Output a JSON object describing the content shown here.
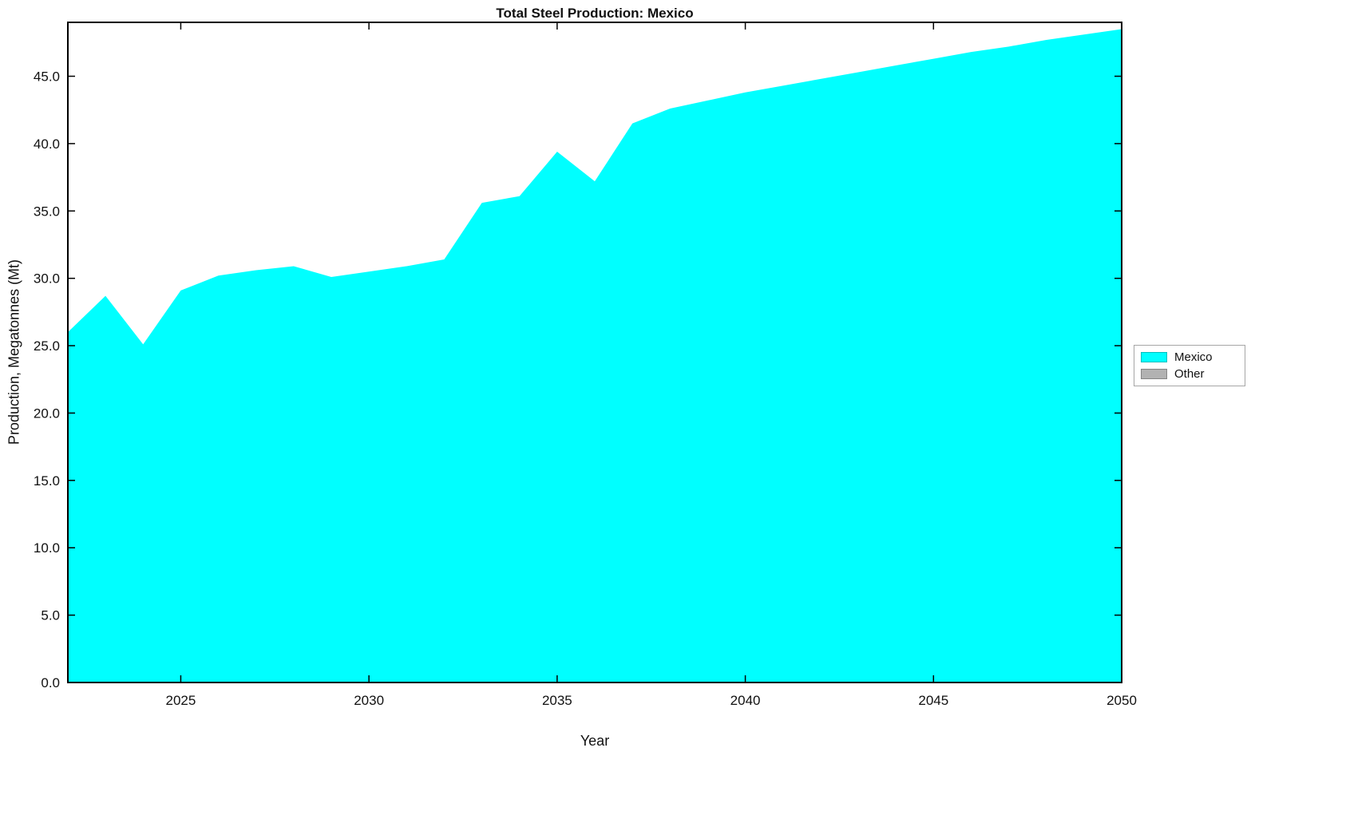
{
  "chart_data": {
    "type": "area",
    "title": "Total Steel Production: Mexico",
    "xlabel": "Year",
    "ylabel": "Production, Megatonnes (Mt)",
    "xlim": [
      2022,
      2050
    ],
    "ylim": [
      0,
      49
    ],
    "grid": false,
    "x": [
      2022,
      2023,
      2024,
      2025,
      2026,
      2027,
      2028,
      2029,
      2030,
      2031,
      2032,
      2033,
      2034,
      2035,
      2036,
      2037,
      2038,
      2039,
      2040,
      2041,
      2042,
      2043,
      2044,
      2045,
      2046,
      2047,
      2048,
      2049,
      2050
    ],
    "series": [
      {
        "name": "Mexico",
        "color": "#00FFFF",
        "values": [
          26.0,
          28.7,
          25.1,
          29.1,
          30.2,
          30.6,
          30.9,
          30.1,
          30.5,
          30.9,
          31.4,
          35.6,
          36.1,
          39.4,
          37.2,
          41.5,
          42.6,
          43.2,
          43.8,
          44.3,
          44.8,
          45.3,
          45.8,
          46.3,
          46.8,
          47.2,
          47.7,
          48.1,
          48.5
        ]
      }
    ],
    "xticks": [
      {
        "v": 2025,
        "label": "2025"
      },
      {
        "v": 2030,
        "label": "2030"
      },
      {
        "v": 2035,
        "label": "2035"
      },
      {
        "v": 2040,
        "label": "2040"
      },
      {
        "v": 2045,
        "label": "2045"
      },
      {
        "v": 2050,
        "label": "2050"
      }
    ],
    "yticks": [
      {
        "v": 0,
        "label": "0.0"
      },
      {
        "v": 5,
        "label": "5.0"
      },
      {
        "v": 10,
        "label": "10.0"
      },
      {
        "v": 15,
        "label": "15.0"
      },
      {
        "v": 20,
        "label": "20.0"
      },
      {
        "v": 25,
        "label": "25.0"
      },
      {
        "v": 30,
        "label": "30.0"
      },
      {
        "v": 35,
        "label": "35.0"
      },
      {
        "v": 40,
        "label": "40.0"
      },
      {
        "v": 45,
        "label": "45.0"
      }
    ],
    "legend": {
      "position": "right-outside",
      "items": [
        {
          "label": "Mexico",
          "color": "#00FFFF"
        },
        {
          "label": "Other",
          "color": "#B2B2B2"
        }
      ]
    }
  }
}
